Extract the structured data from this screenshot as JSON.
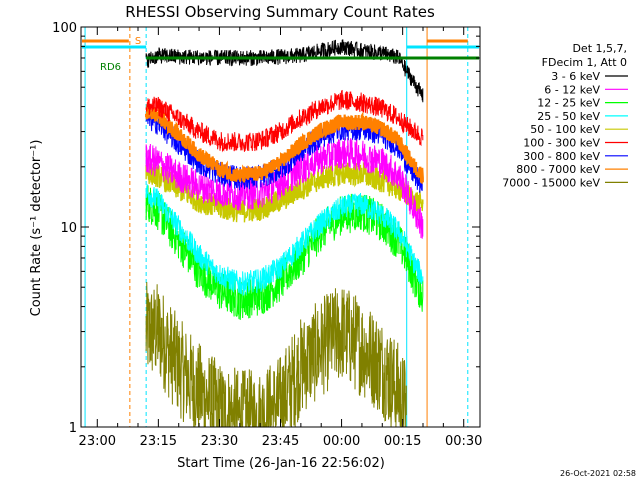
{
  "chart_data": {
    "type": "line",
    "title": "RHESSI Observing Summary Count Rates",
    "xlabel": "Start Time (26-Jan-16 22:56:02)",
    "ylabel": "Count Rate (s⁻¹ detector⁻¹)",
    "yscale": "log",
    "ylim": [
      1,
      100
    ],
    "xlim": [
      "22:56",
      "00:34"
    ],
    "x_ticks": [
      "23:00",
      "23:15",
      "23:30",
      "23:45",
      "00:00",
      "00:15",
      "00:30"
    ],
    "y_ticks": [
      "1",
      "10",
      "100"
    ],
    "legend_header": [
      "Det 1,5,7,",
      "FDecim 1, Att 0"
    ],
    "legend_position": "right",
    "timestamp": "26-Oct-2021 02:58",
    "flags": [
      {
        "label": "S",
        "color": "#ff8000"
      },
      {
        "label": "RD6",
        "color": "#008000"
      }
    ],
    "vertical_markers": [
      {
        "time": "22:57",
        "color": "#00e5ff",
        "style": "solid"
      },
      {
        "time": "23:08",
        "color": "#ff8000",
        "style": "dashed"
      },
      {
        "time": "23:12",
        "color": "#00e5ff",
        "style": "dashed"
      },
      {
        "time": "00:16",
        "color": "#00e5ff",
        "style": "solid"
      },
      {
        "time": "00:21",
        "color": "#ff8000",
        "style": "solid"
      },
      {
        "time": "00:31",
        "color": "#00e5ff",
        "style": "dashed"
      }
    ],
    "data_window": [
      "23:12",
      "00:20"
    ],
    "series": [
      {
        "name": "3 - 6 keV",
        "color": "#000000",
        "t": [
          "23:12",
          "23:15",
          "23:20",
          "23:30",
          "23:40",
          "23:50",
          "23:55",
          "00:00",
          "00:05",
          "00:10",
          "00:14",
          "00:16",
          "00:18",
          "00:20"
        ],
        "values": [
          68,
          72,
          71,
          70,
          70,
          72,
          76,
          80,
          76,
          74,
          70,
          60,
          52,
          45
        ]
      },
      {
        "name": "6 - 12 keV",
        "color": "#ff00ff",
        "t": [
          "23:12",
          "23:15",
          "23:20",
          "23:25",
          "23:30",
          "23:35",
          "23:40",
          "23:45",
          "23:50",
          "23:55",
          "00:00",
          "00:05",
          "00:10",
          "00:14",
          "00:16",
          "00:18",
          "00:20"
        ],
        "values": [
          22,
          21,
          18,
          16,
          15,
          14.5,
          14.8,
          16.5,
          19.5,
          22,
          23.5,
          23,
          21,
          18,
          15,
          12,
          10
        ]
      },
      {
        "name": "12 - 25 keV",
        "color": "#00ff00",
        "t": [
          "23:12",
          "23:15",
          "23:20",
          "23:25",
          "23:30",
          "23:35",
          "23:40",
          "23:45",
          "23:50",
          "23:55",
          "00:00",
          "00:05",
          "00:10",
          "00:14",
          "00:16",
          "00:18",
          "00:20"
        ],
        "values": [
          13.5,
          12,
          8.5,
          6,
          4.8,
          4.3,
          4.5,
          5.3,
          7,
          9.5,
          11.5,
          12,
          10.5,
          8.5,
          7,
          5.5,
          4.5
        ]
      },
      {
        "name": "25 - 50 keV",
        "color": "#00ffff",
        "t": [
          "23:12",
          "23:15",
          "23:20",
          "23:25",
          "23:30",
          "23:35",
          "23:40",
          "23:45",
          "23:50",
          "23:55",
          "00:00",
          "00:05",
          "00:10",
          "00:14",
          "00:16",
          "00:18",
          "00:20"
        ],
        "values": [
          15,
          13.5,
          10,
          7.2,
          5.8,
          5.2,
          5.4,
          6.3,
          8.2,
          10.5,
          12.5,
          13,
          11.5,
          9.5,
          8,
          6.5,
          5.5
        ]
      },
      {
        "name": "50 - 100 keV",
        "color": "#c8c800",
        "t": [
          "23:12",
          "23:15",
          "23:20",
          "23:25",
          "23:30",
          "23:35",
          "23:40",
          "23:45",
          "23:50",
          "23:55",
          "00:00",
          "00:05",
          "00:10",
          "00:14",
          "00:16",
          "00:18",
          "00:20"
        ],
        "values": [
          19,
          18,
          15.5,
          13.5,
          12.5,
          12,
          12.3,
          13.5,
          15.5,
          17.5,
          18.5,
          18.3,
          17,
          15.5,
          14.5,
          13.5,
          13
        ]
      },
      {
        "name": "100 - 300 keV",
        "color": "#ff0000",
        "t": [
          "23:12",
          "23:15",
          "23:20",
          "23:25",
          "23:30",
          "23:35",
          "23:40",
          "23:45",
          "23:50",
          "23:55",
          "00:00",
          "00:05",
          "00:10",
          "00:14",
          "00:16",
          "00:18",
          "00:20"
        ],
        "values": [
          40,
          40,
          35,
          30,
          27,
          26.5,
          27,
          30,
          35,
          40,
          43,
          42,
          39,
          35,
          32,
          30,
          28
        ]
      },
      {
        "name": "300 - 800 keV",
        "color": "#0000ff",
        "t": [
          "23:12",
          "23:15",
          "23:20",
          "23:25",
          "23:30",
          "23:35",
          "23:40",
          "23:45",
          "23:50",
          "23:55",
          "00:00",
          "00:05",
          "00:10",
          "00:14",
          "00:16",
          "00:18",
          "00:20"
        ],
        "values": [
          35,
          33,
          26,
          21,
          18.5,
          17.5,
          17.8,
          19.5,
          24,
          28.5,
          31,
          31,
          29,
          25,
          21,
          18,
          16
        ]
      },
      {
        "name": "800 - 7000 keV",
        "color": "#ff8000",
        "t": [
          "23:12",
          "23:15",
          "23:20",
          "23:25",
          "23:30",
          "23:35",
          "23:40",
          "23:45",
          "23:50",
          "23:55",
          "00:00",
          "00:05",
          "00:10",
          "00:14",
          "00:16",
          "00:18",
          "00:20"
        ],
        "values": [
          38,
          36,
          29,
          23,
          19.5,
          18,
          18.5,
          21,
          26,
          30.5,
          33.5,
          33.5,
          31,
          27,
          23,
          20,
          18
        ]
      },
      {
        "name": "7000 - 15000 keV",
        "color": "#808000",
        "t": [
          "23:12",
          "23:15",
          "23:20",
          "23:25",
          "23:30",
          "23:35",
          "23:40",
          "23:45",
          "23:50",
          "23:55",
          "00:00",
          "00:05",
          "00:10",
          "00:14",
          "00:16"
        ],
        "values": [
          3,
          3,
          2,
          1.5,
          1.2,
          1.1,
          1.1,
          1.3,
          2,
          2.5,
          3,
          2.5,
          2,
          1.5,
          1.2
        ]
      }
    ]
  }
}
